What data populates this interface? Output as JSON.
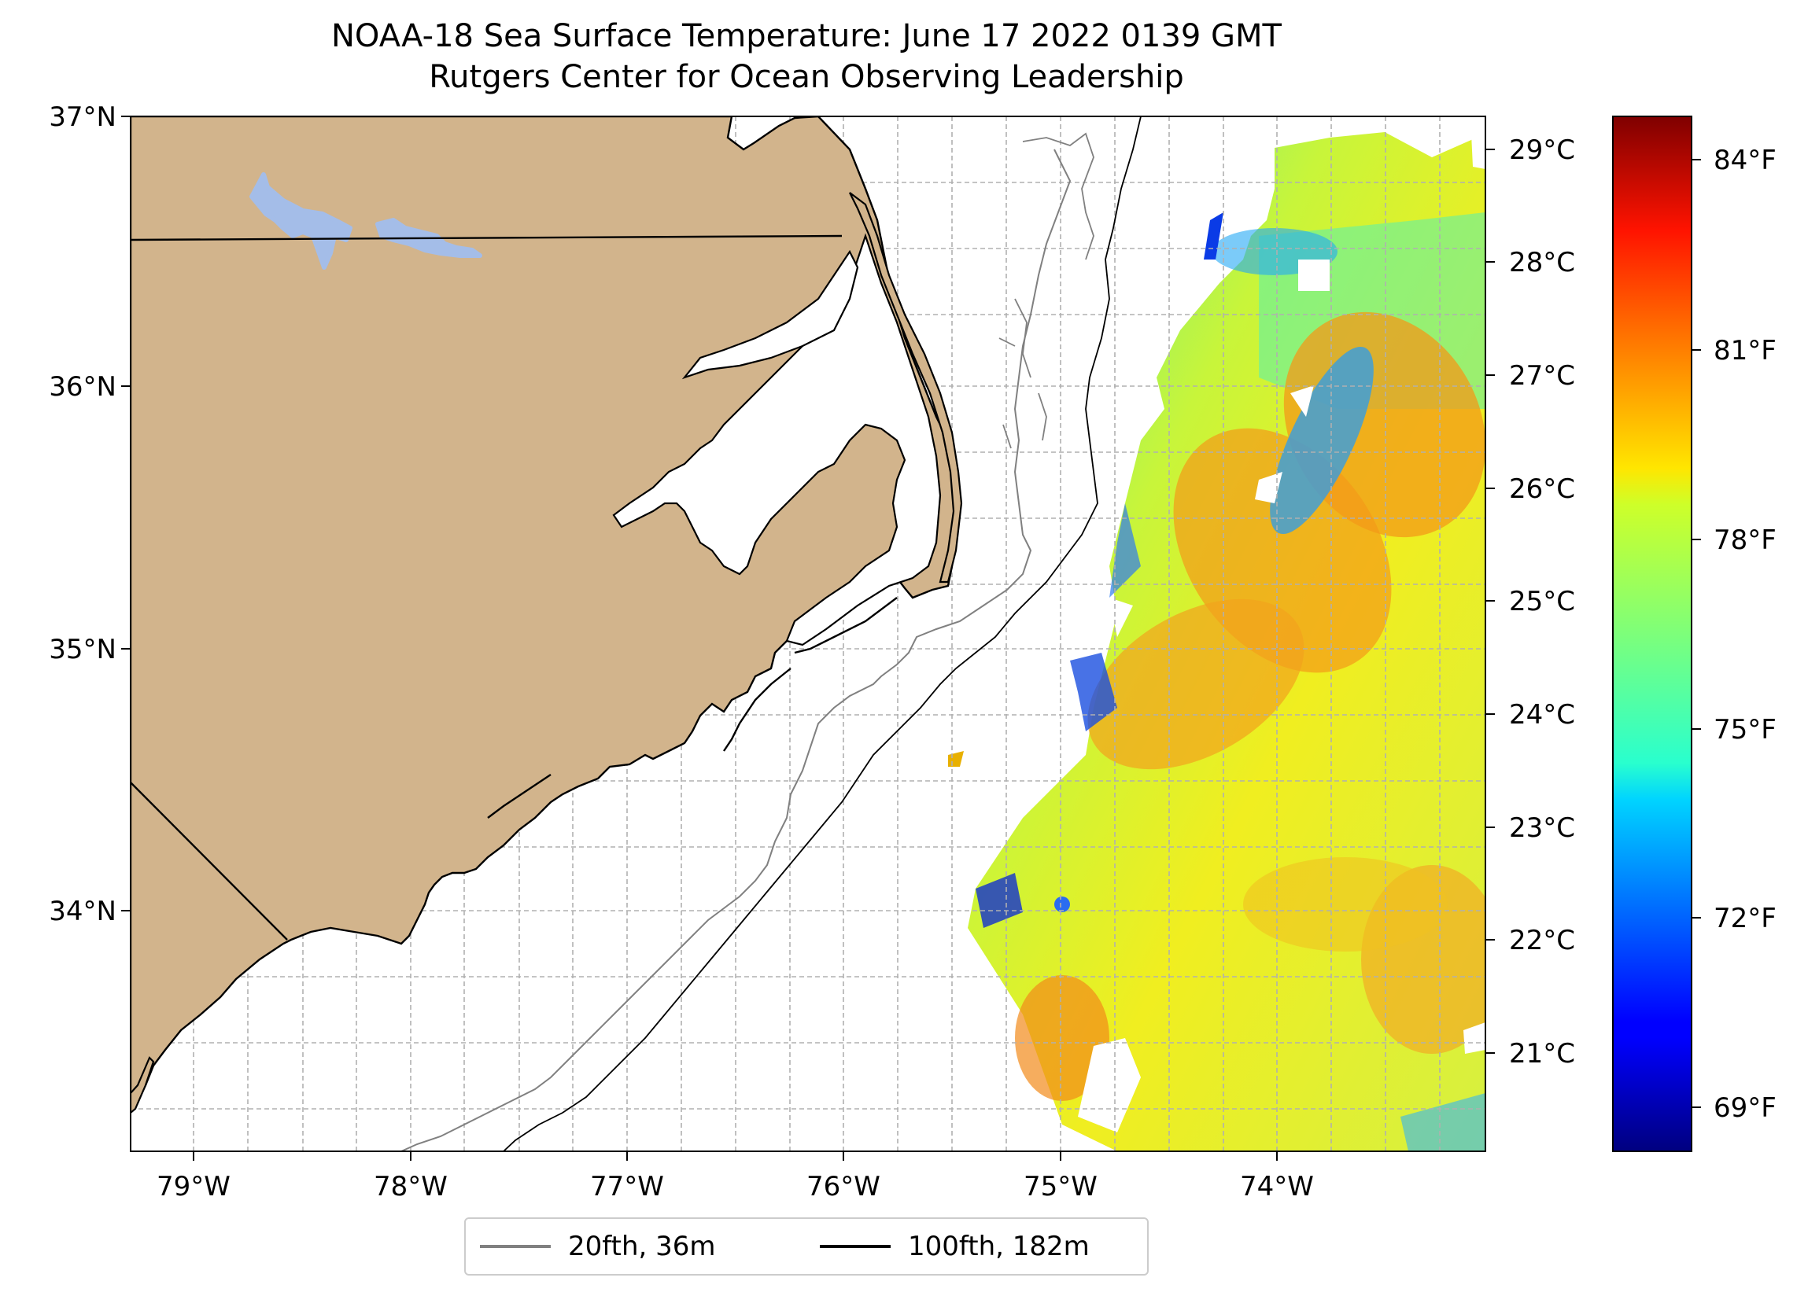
{
  "title": "NOAA-18 Sea Surface Temperature: June 17 2022 0139 GMT",
  "subtitle": "Rutgers Center for Ocean Observing Leadership",
  "map": {
    "lat_range": [
      33.1,
      37.0
    ],
    "lon_range": [
      -79.3,
      -73.1
    ],
    "lat_ticks": [
      "37°N",
      "36°N",
      "35°N",
      "34°N"
    ],
    "lon_ticks": [
      "79°W",
      "78°W",
      "77°W",
      "76°W",
      "75°W",
      "74°W"
    ],
    "colors": {
      "land": "#d2b48c",
      "lake": "#a4bde8",
      "grid": "#b0b0b0"
    }
  },
  "colorbar": {
    "celsius_ticks": [
      "29°C",
      "28°C",
      "27°C",
      "26°C",
      "25°C",
      "24°C",
      "23°C",
      "22°C",
      "21°C"
    ],
    "fahrenheit_ticks": [
      "84°F",
      "81°F",
      "78°F",
      "75°F",
      "72°F",
      "69°F"
    ],
    "colormap": "jet"
  },
  "legend": [
    {
      "label": "20fth, 36m",
      "color": "#808080"
    },
    {
      "label": "100fth, 182m",
      "color": "#000000"
    }
  ]
}
